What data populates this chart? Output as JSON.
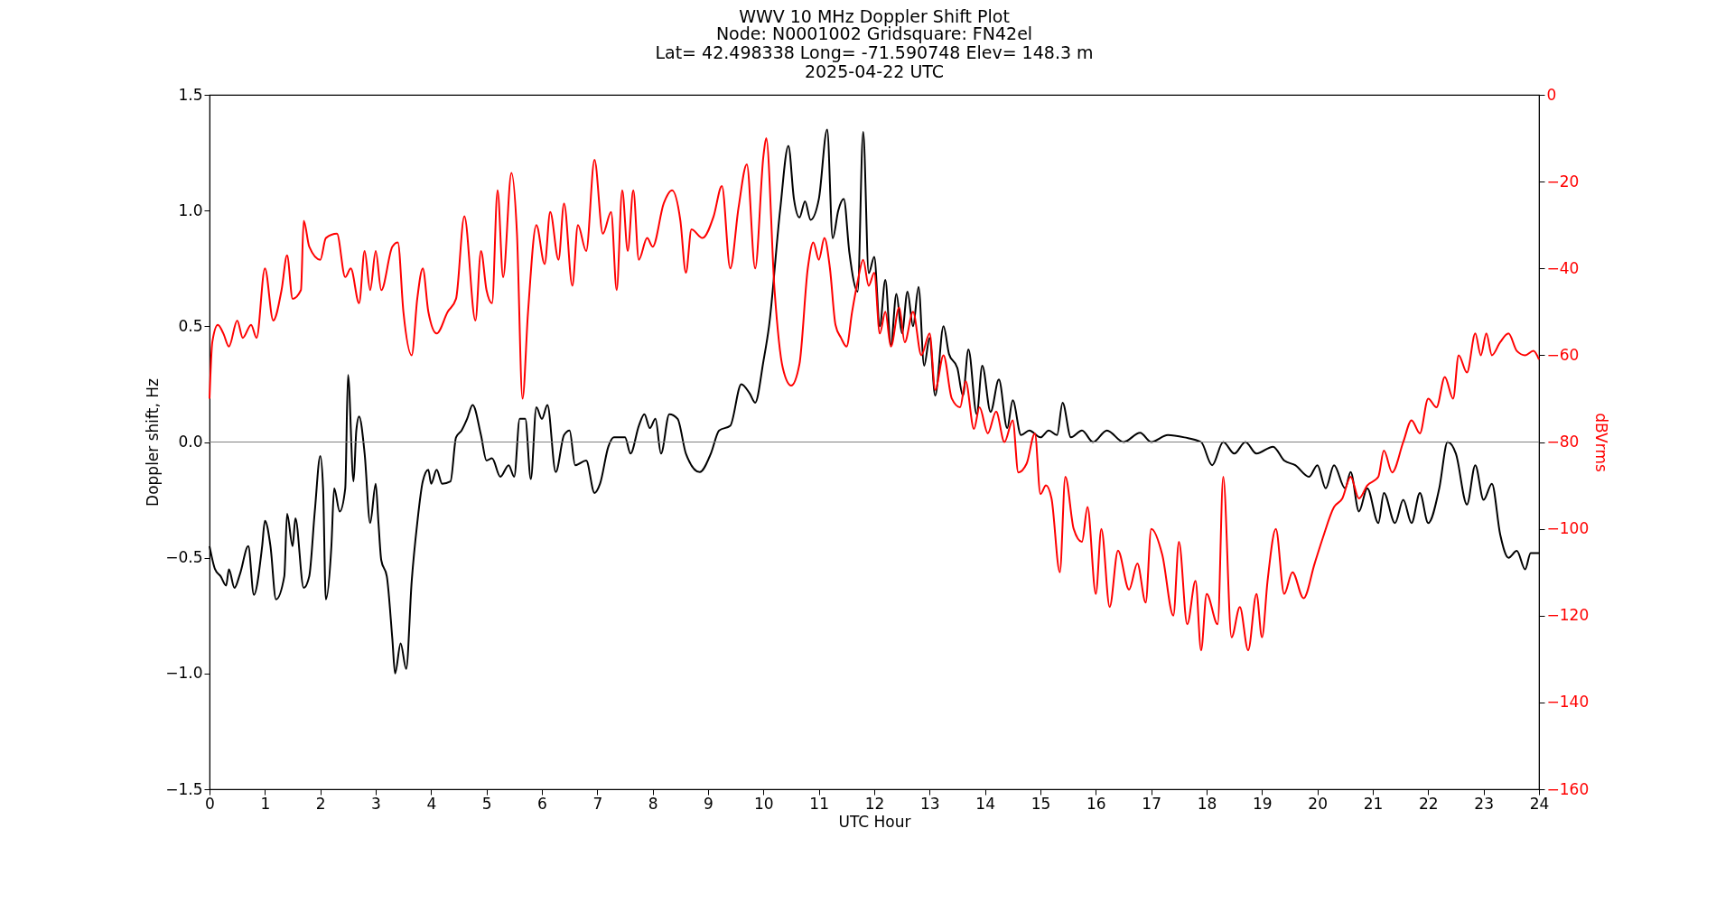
{
  "chart_data": {
    "type": "line",
    "title": "WWV 10 MHz Doppler Shift Plot",
    "subtitle": "Node:  N0001002     Gridsquare:  FN42el\nLat= 42.498338    Long= -71.590748    Elev= 148.3 m\n2025-04-22  UTC",
    "xlabel": "UTC Hour",
    "ylabel": "Doppler shift, Hz",
    "y2label": "dBVrms",
    "xlim": [
      0,
      24
    ],
    "xticks": [
      0,
      1,
      2,
      3,
      4,
      5,
      6,
      7,
      8,
      9,
      10,
      11,
      12,
      13,
      14,
      15,
      16,
      17,
      18,
      19,
      20,
      21,
      22,
      23,
      24
    ],
    "ylim": [
      -1.5,
      1.5
    ],
    "yticks": [
      {
        "value": -1.5,
        "label": "−1.5"
      },
      {
        "value": -1.0,
        "label": "−1.0"
      },
      {
        "value": -0.5,
        "label": "−0.5"
      },
      {
        "value": 0,
        "label": "0.0"
      },
      {
        "value": 0.5,
        "label": "0.5"
      },
      {
        "value": 1.0,
        "label": "1.0"
      },
      {
        "value": 1.5,
        "label": "1.5"
      }
    ],
    "y2lim": [
      -160,
      0
    ],
    "y2ticks": [
      {
        "value": -160,
        "label": "−160"
      },
      {
        "value": -140,
        "label": "−140"
      },
      {
        "value": -120,
        "label": "−120"
      },
      {
        "value": -100,
        "label": "−100"
      },
      {
        "value": -80,
        "label": "−80"
      },
      {
        "value": -60,
        "label": "−60"
      },
      {
        "value": -40,
        "label": "−40"
      },
      {
        "value": -20,
        "label": "−20"
      },
      {
        "value": 0,
        "label": "0"
      }
    ],
    "grid": false,
    "line_style": "solid",
    "marker": "none",
    "ref_lines": [
      {
        "axis": "y",
        "value": 0,
        "color": "#808080"
      }
    ],
    "series": [
      {
        "color": "#000000",
        "x": [
          0,
          0.1,
          0.2,
          0.3,
          0.35,
          0.45,
          0.55,
          0.7,
          0.8,
          0.95,
          1.0,
          1.1,
          1.2,
          1.35,
          1.4,
          1.5,
          1.55,
          1.7,
          1.8,
          1.9,
          2.0,
          2.05,
          2.1,
          2.2,
          2.25,
          2.35,
          2.45,
          2.5,
          2.6,
          2.65,
          2.7,
          2.8,
          2.9,
          3.0,
          3.05,
          3.1,
          3.2,
          3.3,
          3.35,
          3.45,
          3.55,
          3.65,
          3.75,
          3.85,
          3.95,
          4.0,
          4.1,
          4.2,
          4.35,
          4.45,
          4.55,
          4.65,
          4.75,
          4.9,
          5.0,
          5.1,
          5.25,
          5.4,
          5.5,
          5.6,
          5.7,
          5.8,
          5.9,
          6.0,
          6.1,
          6.25,
          6.4,
          6.5,
          6.6,
          6.8,
          6.95,
          7.05,
          7.2,
          7.3,
          7.5,
          7.6,
          7.75,
          7.85,
          7.95,
          8.05,
          8.15,
          8.3,
          8.45,
          8.6,
          8.85,
          9.05,
          9.2,
          9.4,
          9.6,
          9.75,
          9.85,
          10.0,
          10.1,
          10.3,
          10.45,
          10.55,
          10.65,
          10.75,
          10.85,
          11.0,
          11.15,
          11.25,
          11.35,
          11.45,
          11.55,
          11.7,
          11.8,
          11.9,
          12.0,
          12.1,
          12.2,
          12.3,
          12.4,
          12.5,
          12.6,
          12.7,
          12.8,
          12.9,
          13.0,
          13.1,
          13.25,
          13.35,
          13.5,
          13.6,
          13.7,
          13.85,
          13.95,
          14.1,
          14.25,
          14.4,
          14.5,
          14.65,
          14.8,
          15.0,
          15.15,
          15.3,
          15.4,
          15.55,
          15.75,
          15.95,
          16.2,
          16.5,
          16.8,
          17.0,
          17.3,
          17.6,
          17.9,
          18.1,
          18.3,
          18.5,
          18.7,
          18.9,
          19.2,
          19.4,
          19.6,
          19.85,
          20.0,
          20.15,
          20.3,
          20.5,
          20.6,
          20.75,
          20.9,
          21.1,
          21.2,
          21.4,
          21.55,
          21.7,
          21.85,
          22.0,
          22.2,
          22.35,
          22.5,
          22.7,
          22.85,
          23.0,
          23.15,
          23.3,
          23.45,
          23.6,
          23.75,
          23.85,
          24.0
        ],
        "values": [
          -0.45,
          -0.55,
          -0.58,
          -0.62,
          -0.55,
          -0.63,
          -0.57,
          -0.45,
          -0.66,
          -0.45,
          -0.34,
          -0.45,
          -0.68,
          -0.58,
          -0.31,
          -0.45,
          -0.33,
          -0.63,
          -0.58,
          -0.3,
          -0.06,
          -0.2,
          -0.68,
          -0.45,
          -0.2,
          -0.3,
          -0.2,
          0.29,
          -0.17,
          0.05,
          0.11,
          -0.05,
          -0.35,
          -0.18,
          -0.35,
          -0.51,
          -0.58,
          -0.85,
          -1.0,
          -0.87,
          -0.98,
          -0.6,
          -0.35,
          -0.17,
          -0.12,
          -0.18,
          -0.12,
          -0.18,
          -0.17,
          0.02,
          0.05,
          0.1,
          0.16,
          0.03,
          -0.08,
          -0.07,
          -0.15,
          -0.1,
          -0.15,
          0.1,
          0.1,
          -0.16,
          0.15,
          0.1,
          0.16,
          -0.13,
          0.03,
          0.05,
          -0.1,
          -0.08,
          -0.22,
          -0.18,
          -0.02,
          0.02,
          0.02,
          -0.05,
          0.07,
          0.12,
          0.06,
          0.1,
          -0.05,
          0.12,
          0.1,
          -0.05,
          -0.13,
          -0.05,
          0.05,
          0.07,
          0.25,
          0.21,
          0.17,
          0.35,
          0.5,
          1.0,
          1.28,
          1.05,
          0.97,
          1.04,
          0.96,
          1.05,
          1.35,
          0.88,
          1.0,
          1.05,
          0.82,
          0.65,
          1.34,
          0.73,
          0.8,
          0.5,
          0.7,
          0.42,
          0.64,
          0.47,
          0.65,
          0.5,
          0.67,
          0.33,
          0.45,
          0.2,
          0.5,
          0.38,
          0.32,
          0.2,
          0.4,
          0.12,
          0.33,
          0.13,
          0.27,
          0.06,
          0.18,
          0.03,
          0.05,
          0.02,
          0.05,
          0.03,
          0.17,
          0.02,
          0.05,
          0.0,
          0.05,
          0.0,
          0.04,
          0.0,
          0.03,
          0.02,
          0.0,
          -0.1,
          0.0,
          -0.05,
          0.0,
          -0.05,
          -0.02,
          -0.08,
          -0.1,
          -0.15,
          -0.1,
          -0.2,
          -0.1,
          -0.2,
          -0.13,
          -0.3,
          -0.2,
          -0.35,
          -0.22,
          -0.35,
          -0.25,
          -0.35,
          -0.22,
          -0.35,
          -0.2,
          0.0,
          -0.05,
          -0.27,
          -0.1,
          -0.25,
          -0.18,
          -0.4,
          -0.5,
          -0.47,
          -0.55,
          -0.48,
          -0.48
        ]
      },
      {
        "color": "#ff0000",
        "axis": "y2",
        "x": [
          0.0,
          0.05,
          0.15,
          0.25,
          0.35,
          0.5,
          0.6,
          0.75,
          0.85,
          1.0,
          1.15,
          1.3,
          1.4,
          1.5,
          1.65,
          1.7,
          1.8,
          2.0,
          2.1,
          2.3,
          2.45,
          2.55,
          2.7,
          2.8,
          2.9,
          3.0,
          3.1,
          3.3,
          3.4,
          3.5,
          3.65,
          3.75,
          3.85,
          3.95,
          4.1,
          4.3,
          4.45,
          4.6,
          4.8,
          4.9,
          5.0,
          5.1,
          5.2,
          5.3,
          5.45,
          5.55,
          5.65,
          5.75,
          5.9,
          6.05,
          6.15,
          6.3,
          6.4,
          6.55,
          6.65,
          6.8,
          6.95,
          7.1,
          7.25,
          7.35,
          7.45,
          7.55,
          7.65,
          7.75,
          7.9,
          8.0,
          8.2,
          8.35,
          8.5,
          8.6,
          8.7,
          8.9,
          9.1,
          9.25,
          9.4,
          9.55,
          9.7,
          9.85,
          10.0,
          10.05,
          10.2,
          10.35,
          10.5,
          10.65,
          10.8,
          10.9,
          11.0,
          11.1,
          11.2,
          11.3,
          11.4,
          11.5,
          11.6,
          11.7,
          11.8,
          11.9,
          12.0,
          12.1,
          12.2,
          12.3,
          12.45,
          12.55,
          12.7,
          12.85,
          13.0,
          13.1,
          13.25,
          13.4,
          13.55,
          13.65,
          13.8,
          13.9,
          14.05,
          14.2,
          14.35,
          14.5,
          14.6,
          14.75,
          14.9,
          15.0,
          15.1,
          15.2,
          15.35,
          15.45,
          15.6,
          15.75,
          15.85,
          16.0,
          16.1,
          16.25,
          16.4,
          16.6,
          16.75,
          16.9,
          17.0,
          17.2,
          17.4,
          17.5,
          17.65,
          17.8,
          17.9,
          18.0,
          18.2,
          18.3,
          18.45,
          18.6,
          18.75,
          18.9,
          19.0,
          19.1,
          19.25,
          19.4,
          19.55,
          19.75,
          19.95,
          20.1,
          20.3,
          20.45,
          20.6,
          20.75,
          20.9,
          21.1,
          21.2,
          21.35,
          21.55,
          21.7,
          21.85,
          22.0,
          22.15,
          22.3,
          22.45,
          22.55,
          22.7,
          22.85,
          22.95,
          23.05,
          23.15,
          23.3,
          23.45,
          23.6,
          23.75,
          23.9,
          24.0
        ],
        "values": [
          -70,
          -57,
          -53,
          -55,
          -58,
          -52,
          -56,
          -53,
          -56,
          -40,
          -52,
          -45,
          -37,
          -47,
          -45,
          -29,
          -35,
          -38,
          -33,
          -32,
          -42,
          -40,
          -48,
          -36,
          -45,
          -36,
          -45,
          -35,
          -34,
          -50,
          -60,
          -47,
          -40,
          -50,
          -55,
          -50,
          -47,
          -28,
          -52,
          -36,
          -45,
          -48,
          -22,
          -42,
          -18,
          -32,
          -70,
          -50,
          -30,
          -39,
          -27,
          -38,
          -25,
          -44,
          -30,
          -36,
          -15,
          -32,
          -27,
          -45,
          -22,
          -36,
          -22,
          -38,
          -33,
          -35,
          -25,
          -22,
          -29,
          -41,
          -31,
          -33,
          -28,
          -21,
          -40,
          -26,
          -16,
          -40,
          -14,
          -10,
          -45,
          -63,
          -67,
          -62,
          -40,
          -34,
          -38,
          -33,
          -40,
          -53,
          -56,
          -58,
          -50,
          -43,
          -38,
          -44,
          -41,
          -55,
          -50,
          -58,
          -49,
          -57,
          -50,
          -60,
          -55,
          -68,
          -60,
          -70,
          -72,
          -66,
          -77,
          -72,
          -78,
          -73,
          -80,
          -75,
          -87,
          -85,
          -78,
          -92,
          -90,
          -93,
          -110,
          -88,
          -100,
          -103,
          -95,
          -115,
          -100,
          -118,
          -105,
          -114,
          -108,
          -117,
          -100,
          -106,
          -120,
          -103,
          -122,
          -112,
          -128,
          -115,
          -122,
          -88,
          -125,
          -118,
          -128,
          -115,
          -125,
          -112,
          -100,
          -115,
          -110,
          -116,
          -108,
          -102,
          -95,
          -93,
          -88,
          -93,
          -90,
          -88,
          -82,
          -87,
          -80,
          -75,
          -78,
          -70,
          -72,
          -65,
          -70,
          -60,
          -64,
          -55,
          -60,
          -55,
          -60,
          -57,
          -55,
          -59,
          -60,
          -59,
          -61
        ]
      }
    ]
  }
}
